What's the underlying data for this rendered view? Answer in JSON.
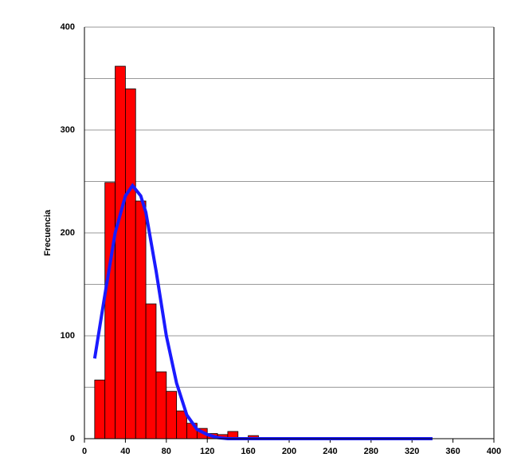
{
  "chart_data": {
    "type": "histogram",
    "ylabel": "Frecuencia",
    "bins": [
      10,
      20,
      30,
      40,
      50,
      60,
      70,
      80,
      90,
      100,
      110,
      120,
      130,
      140,
      150,
      160,
      170
    ],
    "values": [
      57,
      249,
      362,
      340,
      231,
      131,
      65,
      46,
      27,
      15,
      10,
      5,
      4,
      7,
      0,
      3
    ],
    "color": "#ff0000",
    "curve": {
      "color": "#1a1aff",
      "x": [
        10,
        20,
        30,
        40,
        47,
        55,
        60,
        70,
        80,
        90,
        100,
        110,
        120,
        130,
        140,
        160,
        200,
        240,
        280,
        340
      ],
      "values": [
        78,
        140,
        200,
        236,
        246,
        236,
        220,
        163,
        100,
        54,
        23,
        9,
        4,
        1,
        0,
        0,
        0,
        0,
        0,
        0
      ]
    },
    "xlim": [
      0,
      400
    ],
    "xticks": [
      0,
      40,
      80,
      120,
      160,
      200,
      240,
      280,
      320,
      360,
      400
    ],
    "ylim": [
      0,
      400
    ],
    "yticks": [
      0,
      100,
      200,
      300,
      400
    ],
    "minor_yticks": [
      50,
      150,
      250,
      350
    ],
    "grid": true
  }
}
